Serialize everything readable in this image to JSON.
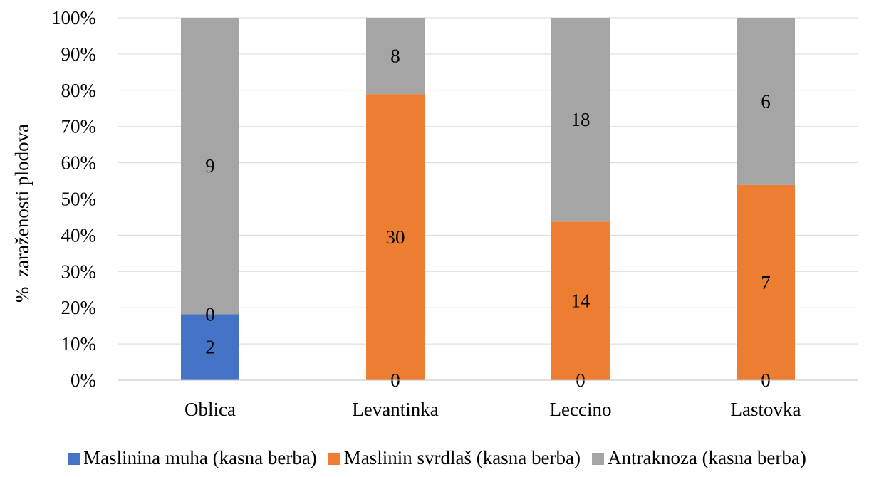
{
  "chart_data": {
    "type": "bar",
    "stacked": "percent",
    "title": "",
    "xlabel": "",
    "ylabel": "%  zaraženosti plodova",
    "ylim": [
      0,
      100
    ],
    "y_tick_labels": [
      "0%",
      "10%",
      "20%",
      "30%",
      "40%",
      "50%",
      "60%",
      "70%",
      "80%",
      "90%",
      "100%"
    ],
    "categories": [
      "Oblica",
      "Levantinka",
      "Leccino",
      "Lastovka"
    ],
    "series": [
      {
        "name": "Maslinina muha (kasna berba)",
        "values": [
          2,
          0,
          0,
          0
        ],
        "color": "#4472C4"
      },
      {
        "name": "Maslinin svrdlaš (kasna berba)",
        "values": [
          0,
          30,
          14,
          7
        ],
        "color": "#ED7D31"
      },
      {
        "name": "Antraknoza (kasna berba)",
        "values": [
          9,
          8,
          18,
          6
        ],
        "color": "#A5A5A5"
      }
    ],
    "data_labels_shown": true,
    "grid": true,
    "legend_position": "bottom",
    "gridline_color": "#D9D9D9",
    "axis_color": "#BFBFBF"
  }
}
